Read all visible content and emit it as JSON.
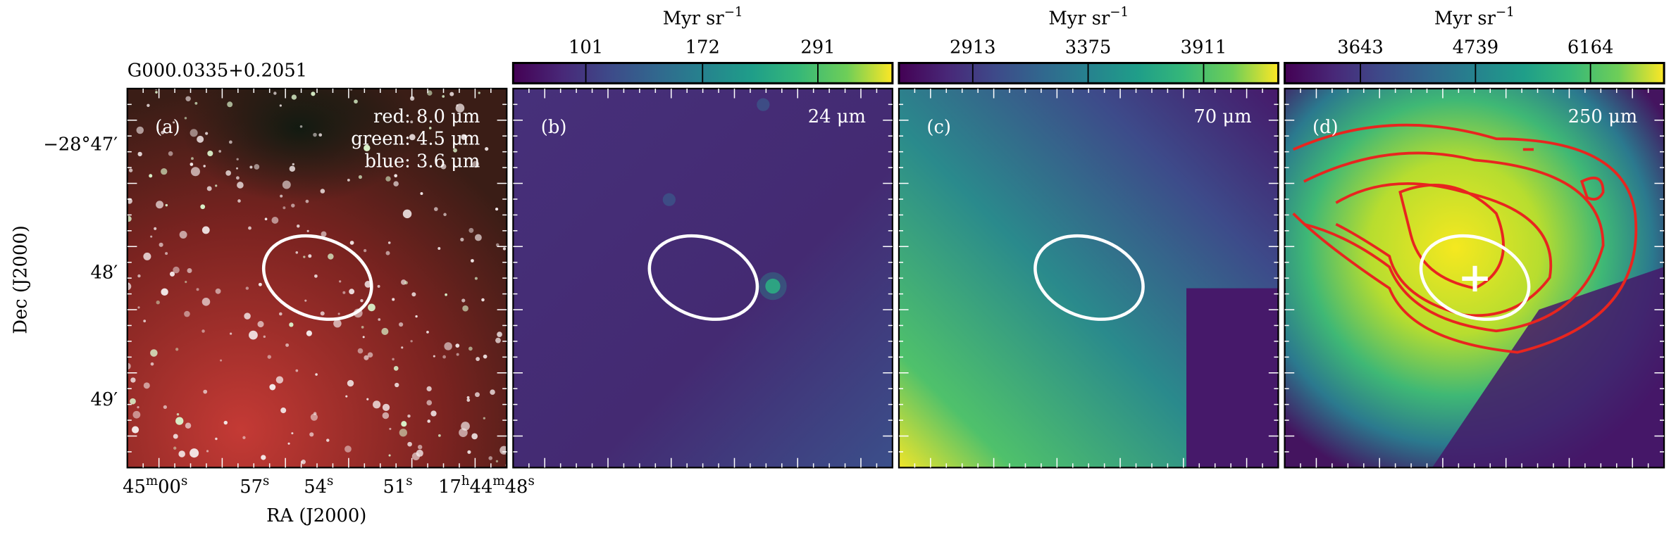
{
  "figure": {
    "source_name": "G000.0335+0.2051",
    "y_axis_label": "Dec (J2000)",
    "x_axis_label": "RA (J2000)",
    "y_ticks": [
      "−28°47′",
      "48′",
      "49′"
    ],
    "x_ticks": [
      [
        "45",
        "m",
        "00",
        "s"
      ],
      [
        "57",
        "s"
      ],
      [
        "54",
        "s"
      ],
      [
        "51",
        "s"
      ],
      [
        "17",
        "h",
        "44",
        "m",
        "48",
        "s"
      ]
    ],
    "panels": [
      {
        "tag": "(a)",
        "labels": [
          "red: 8.0 μm",
          "green: 4.5 μm",
          "blue: 3.6 μm"
        ]
      },
      {
        "tag": "(b)",
        "labels": [
          "24 μm"
        ],
        "colorbar": {
          "unit": "Myr sr",
          "unit_exponent": "−1",
          "lim": [
            72.5,
            409
          ],
          "log": true,
          "ticks": [
            101,
            172,
            291
          ]
        }
      },
      {
        "tag": "(c)",
        "labels": [
          "70 μm"
        ],
        "colorbar": {
          "unit": "Myr sr",
          "unit_exponent": "−1",
          "lim": [
            2651,
            4302
          ],
          "log": true,
          "ticks": [
            2913,
            3375,
            3911
          ]
        }
      },
      {
        "tag": "(d)",
        "labels": [
          "250 μm"
        ],
        "colorbar": {
          "unit": "Myr sr",
          "unit_exponent": "−1",
          "lim": [
            3064,
            7293
          ],
          "log": true,
          "ticks": [
            3643,
            4739,
            6164
          ]
        }
      }
    ]
  }
}
